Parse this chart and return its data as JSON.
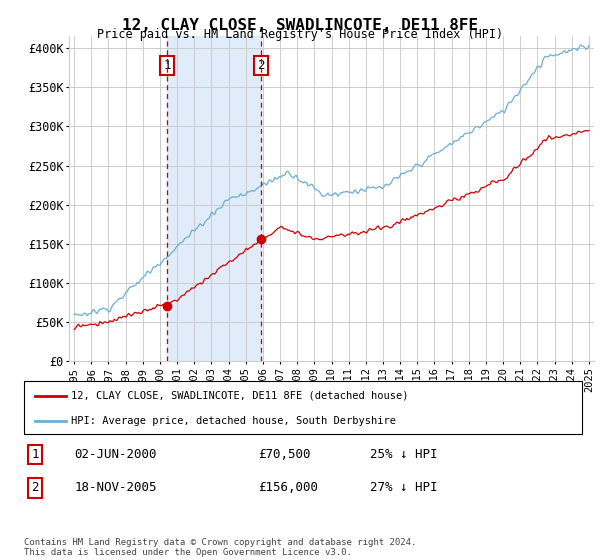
{
  "title": "12, CLAY CLOSE, SWADLINCOTE, DE11 8FE",
  "subtitle": "Price paid vs. HM Land Registry's House Price Index (HPI)",
  "ylabel_ticks": [
    "£0",
    "£50K",
    "£100K",
    "£150K",
    "£200K",
    "£250K",
    "£300K",
    "£350K",
    "£400K"
  ],
  "ytick_values": [
    0,
    50000,
    100000,
    150000,
    200000,
    250000,
    300000,
    350000,
    400000
  ],
  "ylim": [
    0,
    415000
  ],
  "xlim_start": 1994.7,
  "xlim_end": 2025.3,
  "transaction1": {
    "date_num": 2000.42,
    "price": 70500,
    "label": "1",
    "date_str": "02-JUN-2000",
    "pct": "25% ↓ HPI"
  },
  "transaction2": {
    "date_num": 2005.88,
    "price": 156000,
    "label": "2",
    "date_str": "18-NOV-2005",
    "pct": "27% ↓ HPI"
  },
  "hpi_color": "#6baed6",
  "price_color": "#cc0000",
  "background_fill": "#d4e4f7",
  "grid_color": "#cccccc",
  "legend_line1": "12, CLAY CLOSE, SWADLINCOTE, DE11 8FE (detached house)",
  "legend_line2": "HPI: Average price, detached house, South Derbyshire",
  "footer": "Contains HM Land Registry data © Crown copyright and database right 2024.\nThis data is licensed under the Open Government Licence v3.0.",
  "table_row1": [
    "1",
    "02-JUN-2000",
    "£70,500",
    "25% ↓ HPI"
  ],
  "table_row2": [
    "2",
    "18-NOV-2005",
    "£156,000",
    "27% ↓ HPI"
  ]
}
